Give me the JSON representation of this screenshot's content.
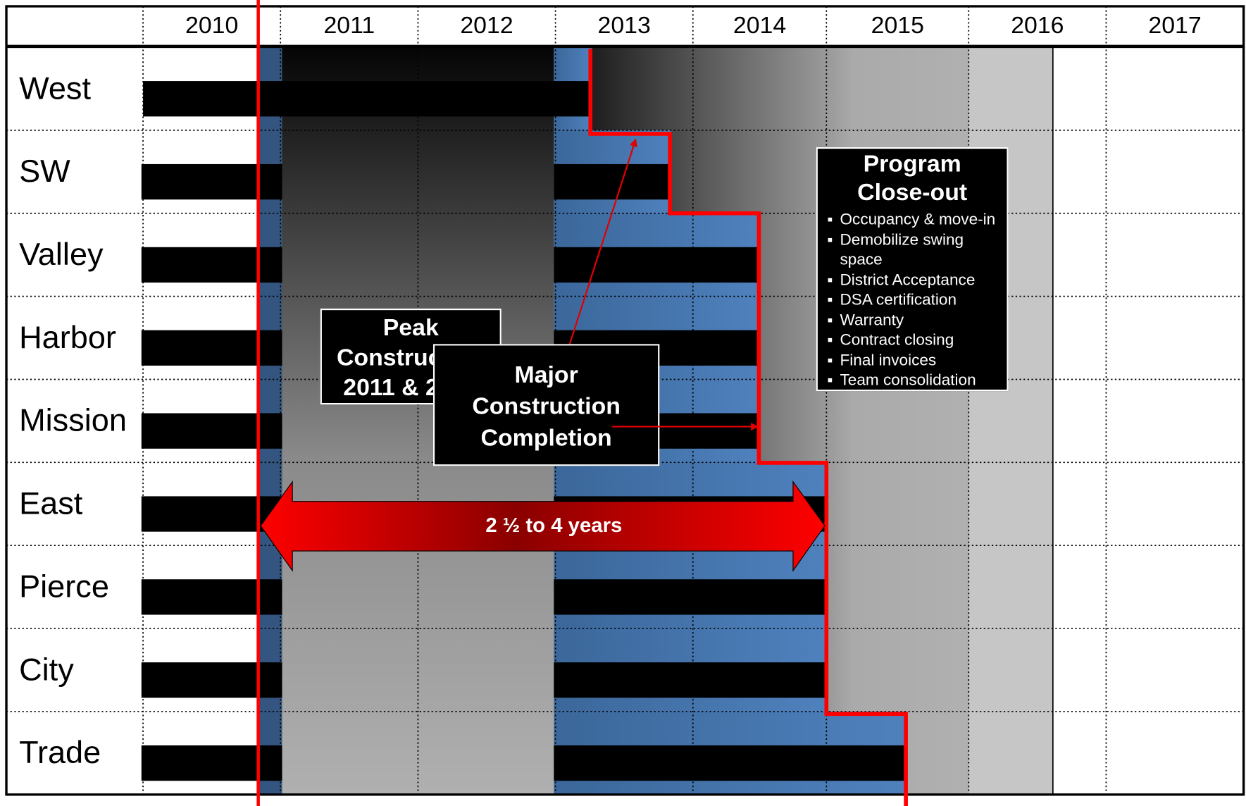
{
  "years": [
    "2010",
    "2011",
    "2012",
    "2013",
    "2014",
    "2015",
    "2016",
    "2017"
  ],
  "rows": [
    "West",
    "SW",
    "Valley",
    "Harbor",
    "Mission",
    "East",
    "Pierce",
    "City",
    "Trade"
  ],
  "peak_box": "Peak Construction 2011 & 2012",
  "major_box": "Major Construction Completion",
  "duration_label": "2 ½ to 4 years",
  "closeout": {
    "title": "Program Close-out",
    "items": [
      "Occupancy & move-in",
      "Demobilize swing space",
      "District Acceptance",
      "DSA certification",
      "Warranty",
      "Contract closing",
      "Final invoices",
      "Team consolidation"
    ]
  }
}
